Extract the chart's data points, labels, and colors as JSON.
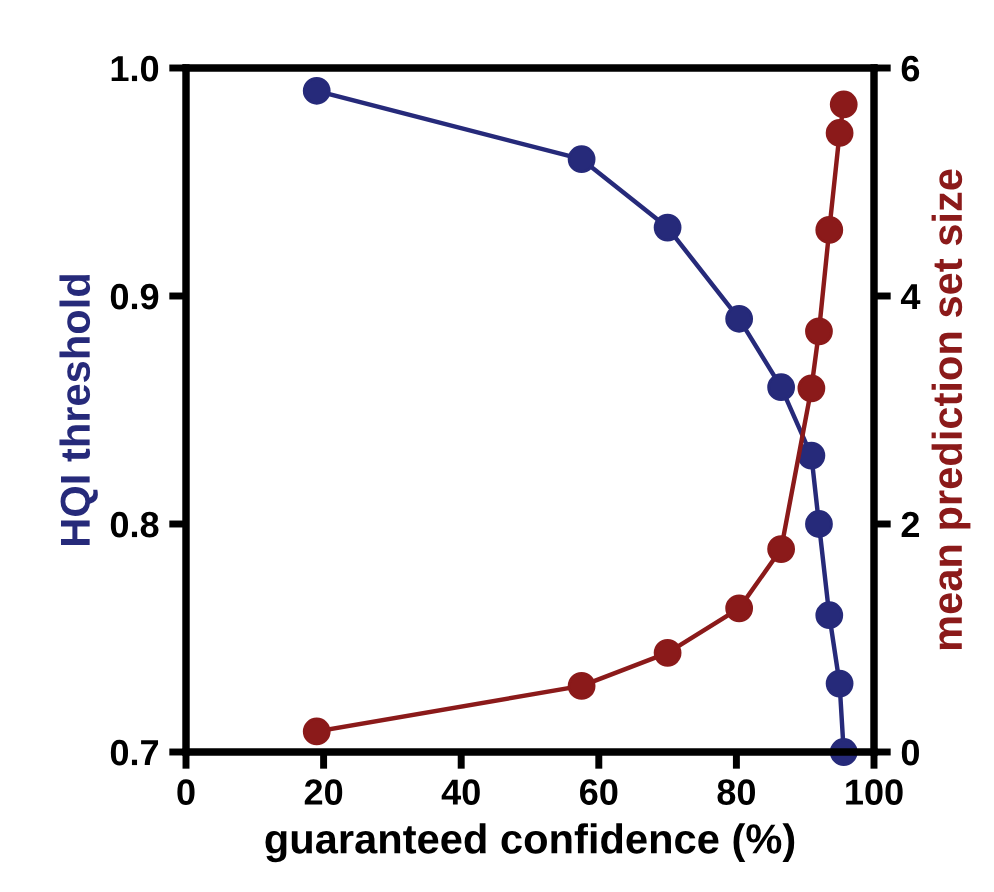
{
  "chart_data": {
    "type": "line",
    "xlabel": "guaranteed confidence (%)",
    "ylabel": "HQI threshold",
    "y2label": "mean prediction set size",
    "x": [
      19,
      57.5,
      70,
      80.4,
      86.5,
      90.9,
      92,
      93.5,
      95,
      95.6
    ],
    "series": [
      {
        "color": "#262a7a",
        "values": [
          0.99,
          0.96,
          0.93,
          0.89,
          0.86,
          0.83,
          0.8,
          0.76,
          0.73,
          0.7
        ]
      },
      {
        "color": "#8b1a1a",
        "axis": "y2",
        "values": [
          0.18,
          0.58,
          0.87,
          1.26,
          1.78,
          3.19,
          3.69,
          4.58,
          5.43,
          5.68
        ]
      }
    ],
    "xlim": [
      0,
      100
    ],
    "xticks": [
      0,
      20,
      40,
      60,
      80,
      100
    ],
    "ylim": [
      0.7,
      1.0
    ],
    "yticks": [
      0.7,
      0.8,
      0.9,
      {
        "value": 1,
        "label": "1.0"
      }
    ],
    "y2lim": [
      0,
      6
    ],
    "y2ticks": [
      0,
      2,
      4,
      6
    ],
    "marker": "circle",
    "line_style": "solid",
    "grid": false,
    "legend": false
  }
}
